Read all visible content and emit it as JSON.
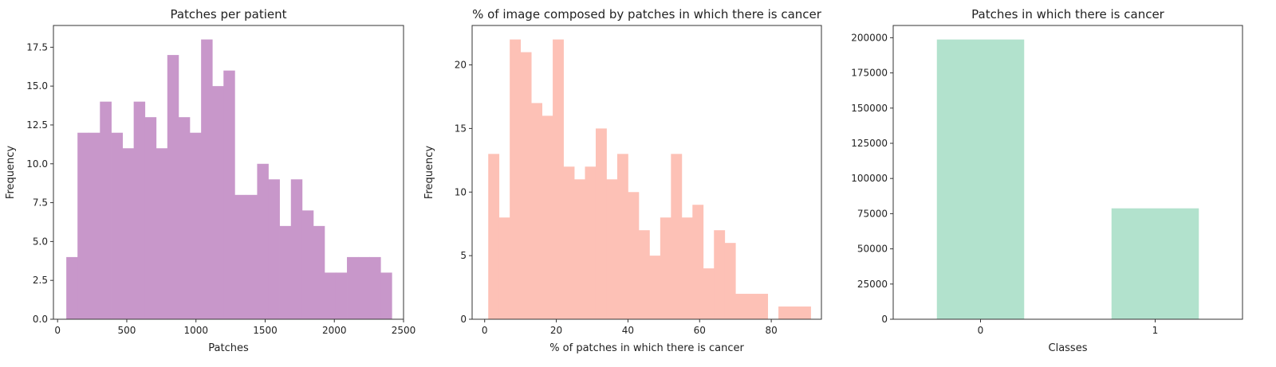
{
  "chart_data": [
    {
      "type": "bar",
      "title": "Patches per patient",
      "xlabel": "Patches",
      "ylabel": "Frequency",
      "color": "#c897ca",
      "xlim": [
        -30,
        2500
      ],
      "ylim": [
        0,
        18.9
      ],
      "xticks": [
        0,
        500,
        1000,
        1500,
        2000,
        2500
      ],
      "xtick_labels": [
        "0",
        "500",
        "1000",
        "1500",
        "2000",
        "2500"
      ],
      "yticks": [
        0,
        2.5,
        5,
        7.5,
        10,
        12.5,
        15,
        17.5
      ],
      "ytick_labels": [
        "0.0",
        "2.5",
        "5.0",
        "7.5",
        "10.0",
        "12.5",
        "15.0",
        "17.5"
      ],
      "bin_edges": [
        63,
        144,
        225,
        306,
        388,
        469,
        550,
        631,
        712,
        793,
        874,
        955,
        1037,
        1118,
        1199,
        1280,
        1361,
        1442,
        1523,
        1604,
        1686,
        1767,
        1848,
        1929,
        2010,
        2091,
        2172,
        2253,
        2334,
        2415
      ],
      "values": [
        4,
        12,
        12,
        14,
        12,
        11,
        14,
        13,
        11,
        17,
        13,
        12,
        18,
        15,
        16,
        8,
        8,
        10,
        9,
        6,
        9,
        7,
        6,
        3,
        3,
        4,
        4,
        4,
        3,
        1
      ]
    },
    {
      "type": "bar",
      "title": "% of image composed by patches in which there is cancer",
      "xlabel": "% of patches in which there is cancer",
      "ylabel": "Frequency",
      "color": "#fdc1b6",
      "xlim": [
        -3.5,
        94
      ],
      "ylim": [
        0,
        23.1
      ],
      "xticks": [
        0,
        20,
        40,
        60,
        80
      ],
      "xtick_labels": [
        "0",
        "20",
        "40",
        "60",
        "80"
      ],
      "yticks": [
        0,
        5,
        10,
        15,
        20
      ],
      "ytick_labels": [
        "0",
        "5",
        "10",
        "15",
        "20"
      ],
      "bin_edges": [
        1,
        4,
        7,
        10,
        13,
        16,
        19,
        22,
        25,
        28,
        31,
        34,
        37,
        40,
        43,
        46,
        49,
        52,
        55,
        58,
        61,
        64,
        67,
        70,
        73,
        76,
        79,
        82,
        85,
        88,
        91
      ],
      "values": [
        13,
        8,
        22,
        21,
        17,
        16,
        22,
        12,
        11,
        12,
        15,
        11,
        13,
        10,
        7,
        5,
        8,
        13,
        8,
        9,
        4,
        7,
        6,
        2,
        2,
        2,
        0,
        1,
        1,
        1
      ]
    },
    {
      "type": "bar",
      "title": "Patches in which there is cancer",
      "xlabel": "Classes",
      "ylabel": "",
      "color": "#b2e2cd",
      "categories": [
        "0",
        "1"
      ],
      "values": [
        198738,
        78786
      ],
      "ylim": [
        0,
        208700
      ],
      "yticks": [
        0,
        25000,
        50000,
        75000,
        100000,
        125000,
        150000,
        175000,
        200000
      ],
      "ytick_labels": [
        "0",
        "25000",
        "50000",
        "75000",
        "100000",
        "125000",
        "150000",
        "175000",
        "200000"
      ]
    }
  ]
}
